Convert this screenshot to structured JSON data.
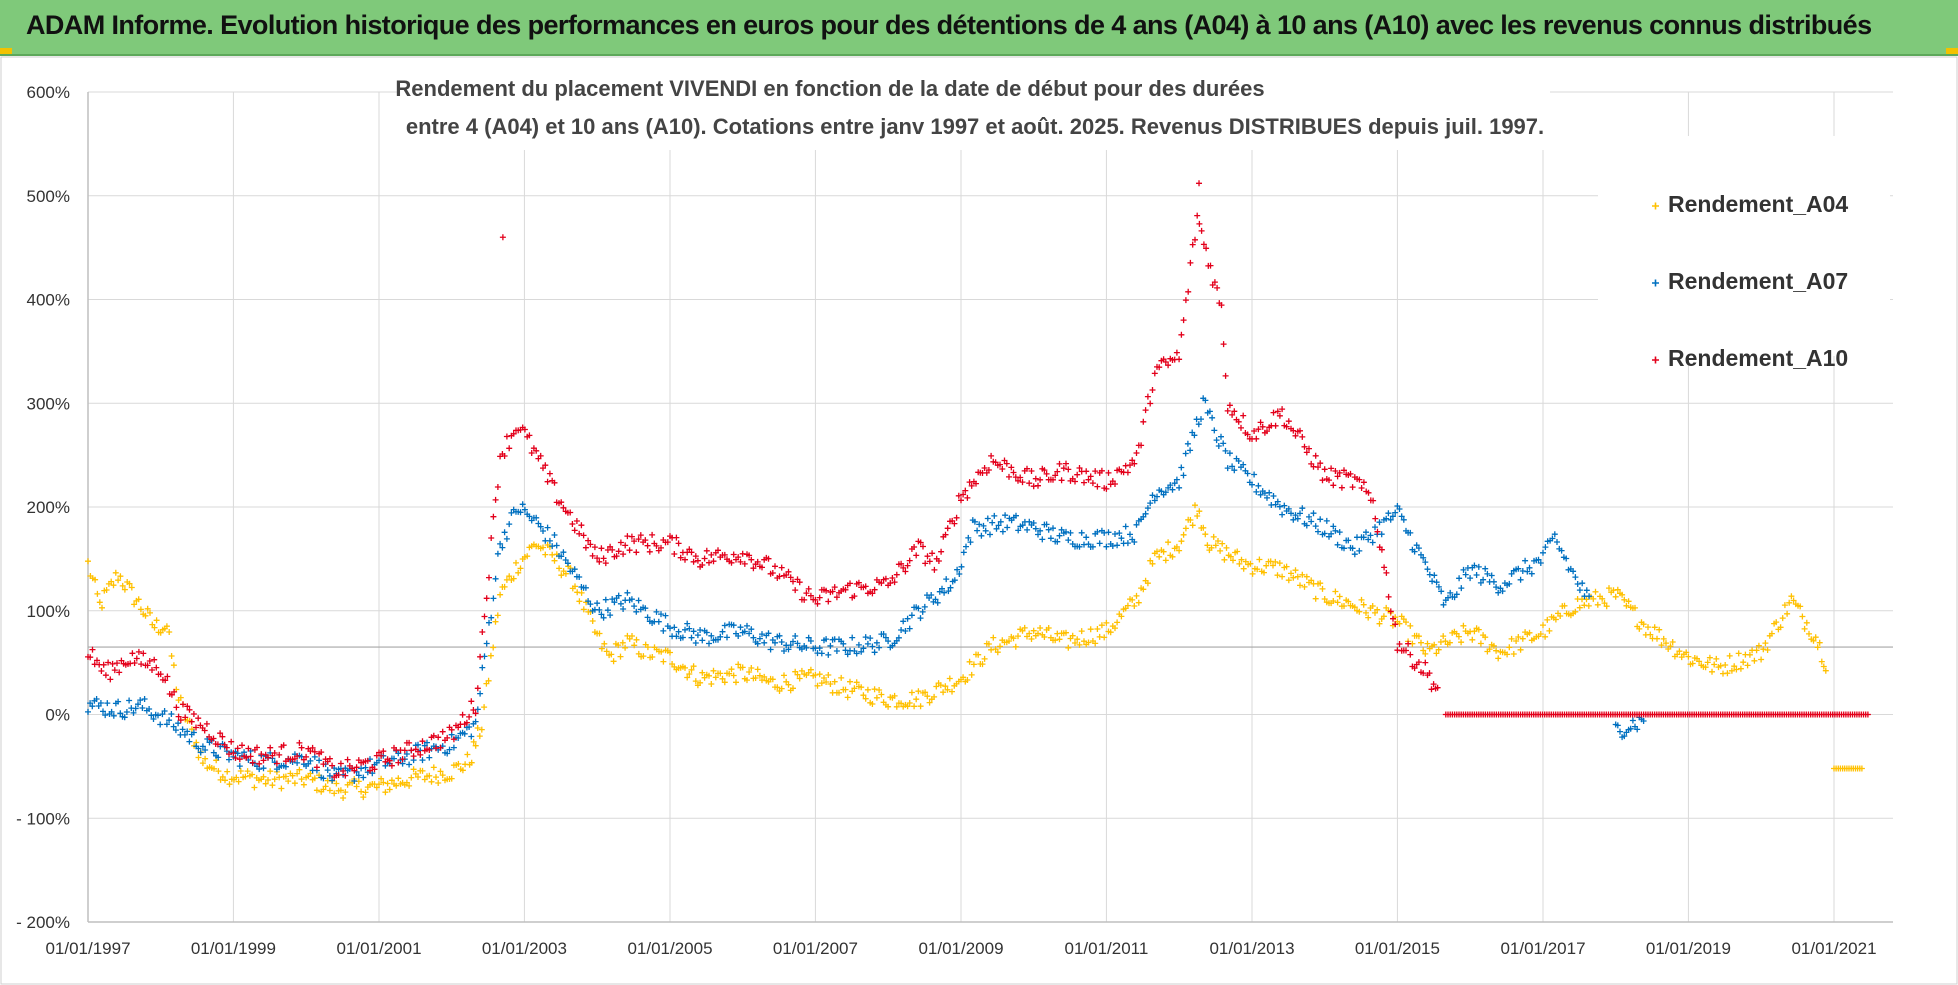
{
  "banner": {
    "title": "ADAM Informe. Evolution historique des performances en euros pour des détentions de 4 ans (A04) à 10 ans (A10) avec les revenus connus distribués"
  },
  "colors": {
    "banner_bg": "#7fc97a",
    "A04": "#ffc000",
    "A07": "#0070c0",
    "A10": "#e3001b",
    "grid": "#d9d9d9"
  },
  "chart_data": {
    "type": "scatter",
    "title_line1": "Rendement du placement VIVENDI en fonction de la date de début pour des durées",
    "title_line2": "entre 4 (A04) et 10 ans (A10). Cotations entre janv 1997 et août. 2025. Revenus DISTRIBUES depuis juil. 1997.",
    "xlabel": "",
    "ylabel": "",
    "x_range": [
      "1997-01-01",
      "2021-07-01"
    ],
    "ylim": [
      -200,
      600
    ],
    "y_ticks": [
      600,
      500,
      400,
      300,
      200,
      100,
      0,
      -100,
      -200
    ],
    "y_tick_labels": [
      "600%",
      "500%",
      "400%",
      "300%",
      "200%",
      "100%",
      "0%",
      "- 100%",
      "- 200%"
    ],
    "x_ticks": [
      "1997-01-01",
      "1999-01-01",
      "2001-01-01",
      "2003-01-01",
      "2005-01-01",
      "2007-01-01",
      "2009-01-01",
      "2011-01-01",
      "2013-01-01",
      "2015-01-01",
      "2017-01-01",
      "2019-01-01",
      "2021-01-01"
    ],
    "x_tick_labels": [
      "01/01/1997",
      "01/01/1999",
      "01/01/2001",
      "01/01/2003",
      "01/01/2005",
      "01/01/2007",
      "01/01/2009",
      "01/01/2011",
      "01/01/2013",
      "01/01/2015",
      "01/01/2017",
      "01/01/2019",
      "01/01/2021"
    ],
    "reference_line_y": 65,
    "grid": true,
    "legend_position": "top-right",
    "marker": "+",
    "series": [
      {
        "name": "Rendement_A04",
        "color": "#ffc000",
        "segments": [
          [
            [
              "1997-01-01",
              145
            ],
            [
              "1997-03-01",
              105
            ],
            [
              "1997-06-01",
              135
            ],
            [
              "1997-09-01",
              110
            ],
            [
              "1997-12-01",
              85
            ],
            [
              "1998-02-01",
              85
            ],
            [
              "1998-04-01",
              15
            ],
            [
              "1998-08-01",
              -45
            ],
            [
              "1998-12-01",
              -58
            ],
            [
              "1999-06-01",
              -63
            ],
            [
              "2000-01-01",
              -62
            ],
            [
              "2000-06-01",
              -72
            ],
            [
              "2001-01-01",
              -70
            ],
            [
              "2001-06-01",
              -62
            ],
            [
              "2002-01-01",
              -55
            ],
            [
              "2002-04-01",
              -45
            ],
            [
              "2002-06-01",
              -10
            ],
            [
              "2002-09-01",
              115
            ],
            [
              "2002-12-01",
              145
            ],
            [
              "2003-03-01",
              165
            ],
            [
              "2003-06-01",
              150
            ],
            [
              "2003-09-01",
              130
            ],
            [
              "2004-01-01",
              75
            ],
            [
              "2004-03-01",
              55
            ],
            [
              "2004-06-01",
              70
            ],
            [
              "2004-09-01",
              60
            ],
            [
              "2005-01-01",
              55
            ],
            [
              "2005-06-01",
              35
            ],
            [
              "2006-01-01",
              40
            ],
            [
              "2006-06-01",
              30
            ],
            [
              "2007-01-01",
              35
            ],
            [
              "2007-06-01",
              25
            ],
            [
              "2008-01-01",
              15
            ],
            [
              "2008-06-01",
              15
            ],
            [
              "2009-01-01",
              35
            ],
            [
              "2009-06-01",
              65
            ],
            [
              "2010-01-01",
              80
            ],
            [
              "2010-06-01",
              70
            ],
            [
              "2011-01-01",
              80
            ],
            [
              "2011-06-01",
              110
            ],
            [
              "2011-09-01",
              150
            ],
            [
              "2012-01-01",
              165
            ],
            [
              "2012-04-01",
              200
            ],
            [
              "2012-06-01",
              165
            ],
            [
              "2012-12-01",
              145
            ],
            [
              "2013-06-01",
              140
            ],
            [
              "2014-01-01",
              115
            ],
            [
              "2014-06-01",
              105
            ],
            [
              "2015-01-01",
              90
            ],
            [
              "2015-06-01",
              60
            ],
            [
              "2016-01-01",
              80
            ],
            [
              "2016-06-01",
              60
            ],
            [
              "2017-01-01",
              80
            ],
            [
              "2017-06-01",
              105
            ],
            [
              "2018-01-01",
              115
            ],
            [
              "2018-06-01",
              85
            ],
            [
              "2019-01-01",
              55
            ],
            [
              "2019-06-01",
              45
            ],
            [
              "2020-01-01",
              60
            ],
            [
              "2020-06-01",
              110
            ],
            [
              "2020-10-01",
              75
            ],
            [
              "2020-12-01",
              45
            ]
          ],
          [
            [
              "2021-01-01",
              -52
            ],
            [
              "2021-06-01",
              -52
            ]
          ]
        ]
      },
      {
        "name": "Rendement_A07",
        "color": "#0070c0",
        "segments": [
          [
            [
              "1997-01-01",
              10
            ],
            [
              "1997-06-01",
              5
            ],
            [
              "1997-10-01",
              8
            ],
            [
              "1998-02-01",
              -5
            ],
            [
              "1998-08-01",
              -30
            ],
            [
              "1999-01-01",
              -40
            ],
            [
              "1999-06-01",
              -45
            ],
            [
              "2000-01-01",
              -42
            ],
            [
              "2000-06-01",
              -62
            ],
            [
              "2001-01-01",
              -48
            ],
            [
              "2001-06-01",
              -40
            ],
            [
              "2002-01-01",
              -28
            ],
            [
              "2002-05-01",
              -10
            ],
            [
              "2002-09-01",
              165
            ],
            [
              "2002-12-01",
              200
            ],
            [
              "2003-03-01",
              185
            ],
            [
              "2003-06-01",
              165
            ],
            [
              "2004-01-01",
              100
            ],
            [
              "2004-06-01",
              110
            ],
            [
              "2005-01-01",
              85
            ],
            [
              "2005-06-01",
              75
            ],
            [
              "2006-01-01",
              80
            ],
            [
              "2006-06-01",
              70
            ],
            [
              "2007-01-01",
              65
            ],
            [
              "2007-06-01",
              65
            ],
            [
              "2008-01-01",
              70
            ],
            [
              "2008-06-01",
              100
            ],
            [
              "2008-12-01",
              130
            ],
            [
              "2009-03-01",
              180
            ],
            [
              "2009-09-01",
              185
            ],
            [
              "2010-01-01",
              180
            ],
            [
              "2010-06-01",
              170
            ],
            [
              "2011-01-01",
              170
            ],
            [
              "2011-06-01",
              175
            ],
            [
              "2011-09-01",
              215
            ],
            [
              "2012-01-01",
              225
            ],
            [
              "2012-05-01",
              300
            ],
            [
              "2012-09-01",
              245
            ],
            [
              "2013-01-01",
              225
            ],
            [
              "2013-06-01",
              200
            ],
            [
              "2014-01-01",
              180
            ],
            [
              "2014-06-01",
              160
            ],
            [
              "2015-01-01",
              195
            ],
            [
              "2015-06-01",
              140
            ],
            [
              "2015-09-01",
              105
            ],
            [
              "2016-01-01",
              140
            ],
            [
              "2016-06-01",
              125
            ],
            [
              "2017-01-01",
              150
            ],
            [
              "2017-03-01",
              170
            ],
            [
              "2017-06-01",
              135
            ],
            [
              "2017-09-01",
              105
            ]
          ],
          [
            [
              "2018-01-01",
              -15
            ],
            [
              "2018-06-01",
              -5
            ]
          ]
        ]
      },
      {
        "name": "Rendement_A10",
        "color": "#e3001b",
        "segments": [
          [
            [
              "1997-01-01",
              60
            ],
            [
              "1997-04-01",
              40
            ],
            [
              "1997-08-01",
              55
            ],
            [
              "1998-01-01",
              45
            ],
            [
              "1998-04-01",
              5
            ],
            [
              "1998-09-01",
              -15
            ],
            [
              "1999-01-01",
              -35
            ],
            [
              "1999-06-01",
              -40
            ],
            [
              "2000-01-01",
              -35
            ],
            [
              "2000-06-01",
              -55
            ],
            [
              "2001-01-01",
              -45
            ],
            [
              "2001-06-01",
              -35
            ],
            [
              "2002-01-01",
              -20
            ],
            [
              "2002-05-01",
              10
            ],
            [
              "2002-09-01",
              250
            ],
            [
              "2002-12-01",
              280
            ],
            [
              "2003-03-01",
              250
            ],
            [
              "2003-06-01",
              215
            ],
            [
              "2004-01-01",
              150
            ],
            [
              "2004-06-01",
              165
            ],
            [
              "2005-01-01",
              165
            ],
            [
              "2005-06-01",
              150
            ],
            [
              "2006-01-01",
              155
            ],
            [
              "2006-06-01",
              140
            ],
            [
              "2007-01-01",
              110
            ],
            [
              "2007-06-01",
              120
            ],
            [
              "2008-01-01",
              125
            ],
            [
              "2008-06-01",
              160
            ],
            [
              "2008-09-01",
              145
            ],
            [
              "2009-01-01",
              210
            ],
            [
              "2009-06-01",
              245
            ],
            [
              "2010-01-01",
              225
            ],
            [
              "2010-06-01",
              235
            ],
            [
              "2011-01-01",
              225
            ],
            [
              "2011-06-01",
              245
            ],
            [
              "2011-09-01",
              330
            ],
            [
              "2012-01-01",
              345
            ],
            [
              "2012-04-01",
              480
            ],
            [
              "2012-08-01",
              390
            ],
            [
              "2012-09-01",
              300
            ],
            [
              "2013-01-01",
              270
            ],
            [
              "2013-06-01",
              290
            ],
            [
              "2014-01-01",
              230
            ],
            [
              "2014-06-01",
              225
            ],
            [
              "2014-09-01",
              205
            ],
            [
              "2015-01-01",
              70
            ],
            [
              "2015-06-01",
              40
            ],
            [
              "2015-08-01",
              20
            ]
          ],
          [
            [
              "2015-09-01",
              0
            ],
            [
              "2021-07-01",
              0
            ]
          ]
        ]
      }
    ],
    "outliers": [
      {
        "series": "Rendement_A10",
        "x": "2002-09-15",
        "y": 460
      },
      {
        "series": "Rendement_A10",
        "x": "2012-04-10",
        "y": 512
      }
    ]
  },
  "legend": {
    "items": [
      {
        "label": "Rendement_A04",
        "color": "#ffc000"
      },
      {
        "label": "Rendement_A07",
        "color": "#0070c0"
      },
      {
        "label": "Rendement_A10",
        "color": "#e3001b"
      }
    ]
  }
}
